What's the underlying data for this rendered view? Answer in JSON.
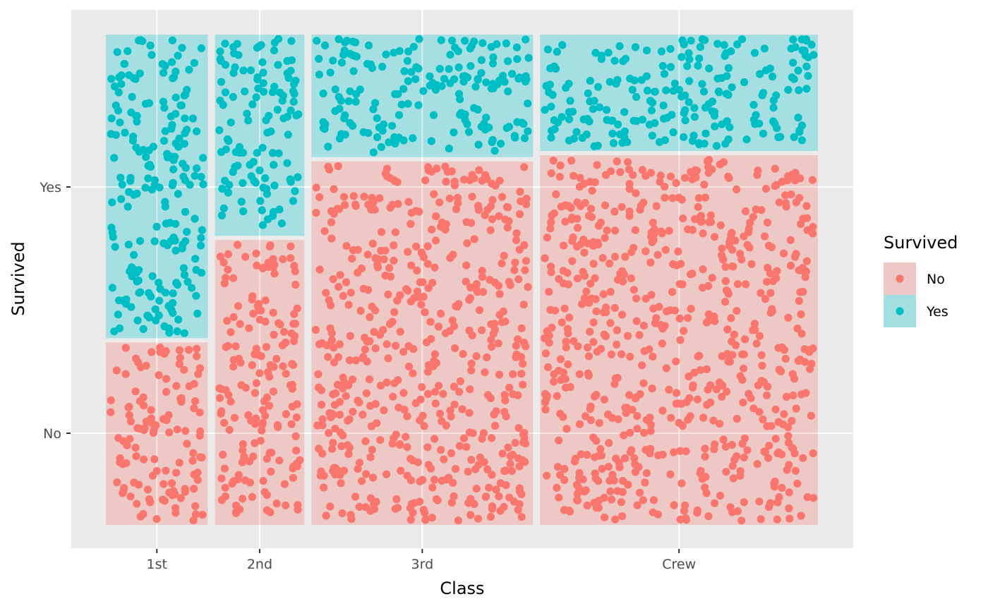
{
  "chart_data": {
    "type": "scatter",
    "subtype": "mosaic-jitter",
    "title": "",
    "xlabel": "Class",
    "ylabel": "Survived",
    "x_categories": [
      "1st",
      "2nd",
      "3rd",
      "Crew"
    ],
    "y_categories": [
      "No",
      "Yes"
    ],
    "grid": true,
    "legend": {
      "title": "Survived",
      "placement": "right",
      "entries": [
        {
          "label": "No",
          "color": "#F8766D",
          "fill": "#EDC8C5"
        },
        {
          "label": "Yes",
          "color": "#00BFC4",
          "fill": "#A6DFE1"
        }
      ]
    },
    "counts": [
      {
        "class": "1st",
        "No": 122,
        "Yes": 203
      },
      {
        "class": "2nd",
        "No": 167,
        "Yes": 118
      },
      {
        "class": "3rd",
        "No": 528,
        "Yes": 178
      },
      {
        "class": "Crew",
        "No": 673,
        "Yes": 212
      }
    ],
    "total": 2201
  }
}
